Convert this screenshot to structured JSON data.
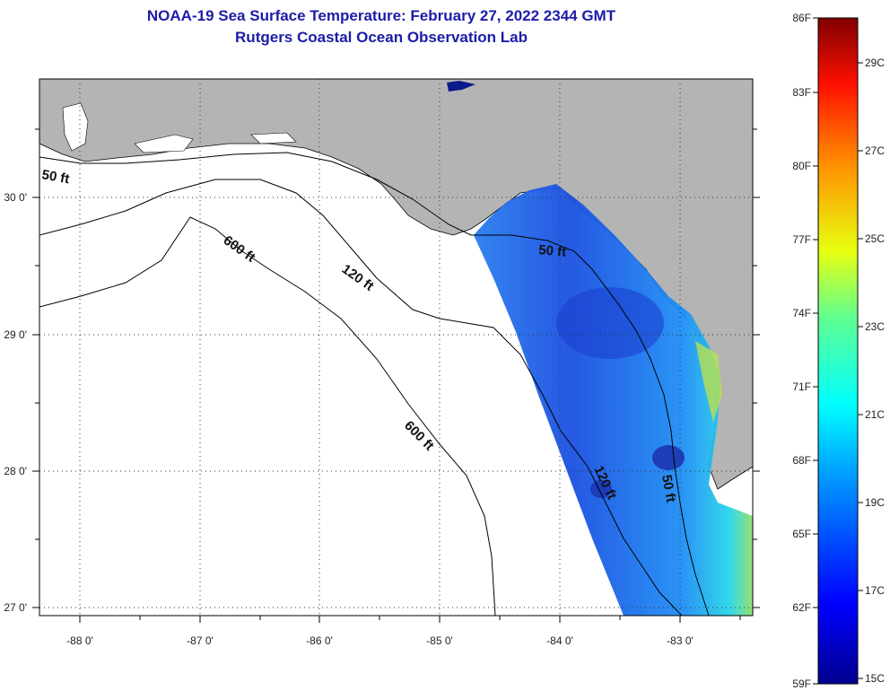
{
  "title": "NOAA-19 Sea Surface Temperature:  February 27, 2022 2344 GMT",
  "subtitle": "Rutgers Coastal Ocean Observation Lab",
  "lat_labels": [
    "30 0'",
    "29 0'",
    "28 0'",
    "27 0'"
  ],
  "lon_labels": [
    "-88 0'",
    "-87 0'",
    "-86 0'",
    "-85 0'",
    "-84 0'",
    "-83 0'"
  ],
  "contour_labels": {
    "c50_west": "50 ft",
    "c50_east": "50 ft",
    "c50_south": "50 ft",
    "c120_north": "120 ft",
    "c120_south": "120 ft",
    "c600_north": "600 ft",
    "c600_south": "600 ft"
  },
  "colorbar": {
    "fahrenheit": [
      "86F",
      "83F",
      "80F",
      "77F",
      "74F",
      "71F",
      "68F",
      "65F",
      "62F",
      "59F"
    ],
    "celsius": [
      "29C",
      "27C",
      "25C",
      "23C",
      "21C",
      "19C",
      "17C",
      "15C"
    ],
    "range_f": [
      59,
      86
    ]
  },
  "colors": {
    "title": "#1c1ca8",
    "land": "#b4b4b4",
    "sst_cold": "#1c4fd8",
    "sst_warm": "#62e07a"
  }
}
